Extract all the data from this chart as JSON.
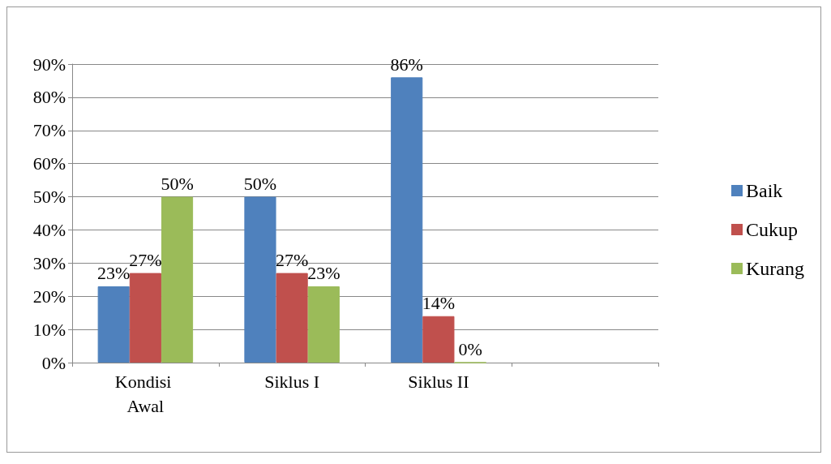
{
  "chart_data": {
    "type": "bar",
    "categories": [
      "Kondisi Awal",
      "Siklus I",
      "Siklus II",
      null
    ],
    "series": [
      {
        "name": "Baik",
        "color": "#4f81bd",
        "values": [
          23,
          50,
          86,
          null
        ],
        "value_labels": [
          "23%",
          "50%",
          "86%",
          null
        ]
      },
      {
        "name": "Cukup",
        "color": "#c0504d",
        "values": [
          27,
          27,
          14,
          null
        ],
        "value_labels": [
          "27%",
          "27%",
          "14%",
          null
        ]
      },
      {
        "name": "Kurang",
        "color": "#9bbb59",
        "values": [
          50,
          23,
          0,
          null
        ],
        "value_labels": [
          "50%",
          "23%",
          "0%",
          null
        ]
      }
    ],
    "ylim": [
      0,
      90
    ],
    "yticks": [
      {
        "value": 0,
        "label": "0%"
      },
      {
        "value": 10,
        "label": "10%"
      },
      {
        "value": 20,
        "label": "20%"
      },
      {
        "value": 30,
        "label": "30%"
      },
      {
        "value": 40,
        "label": "40%"
      },
      {
        "value": 50,
        "label": "50%"
      },
      {
        "value": 60,
        "label": "60%"
      },
      {
        "value": 70,
        "label": "70%"
      },
      {
        "value": 80,
        "label": "80%"
      },
      {
        "value": 90,
        "label": "90%"
      }
    ],
    "grid": "y",
    "legend": "right"
  }
}
